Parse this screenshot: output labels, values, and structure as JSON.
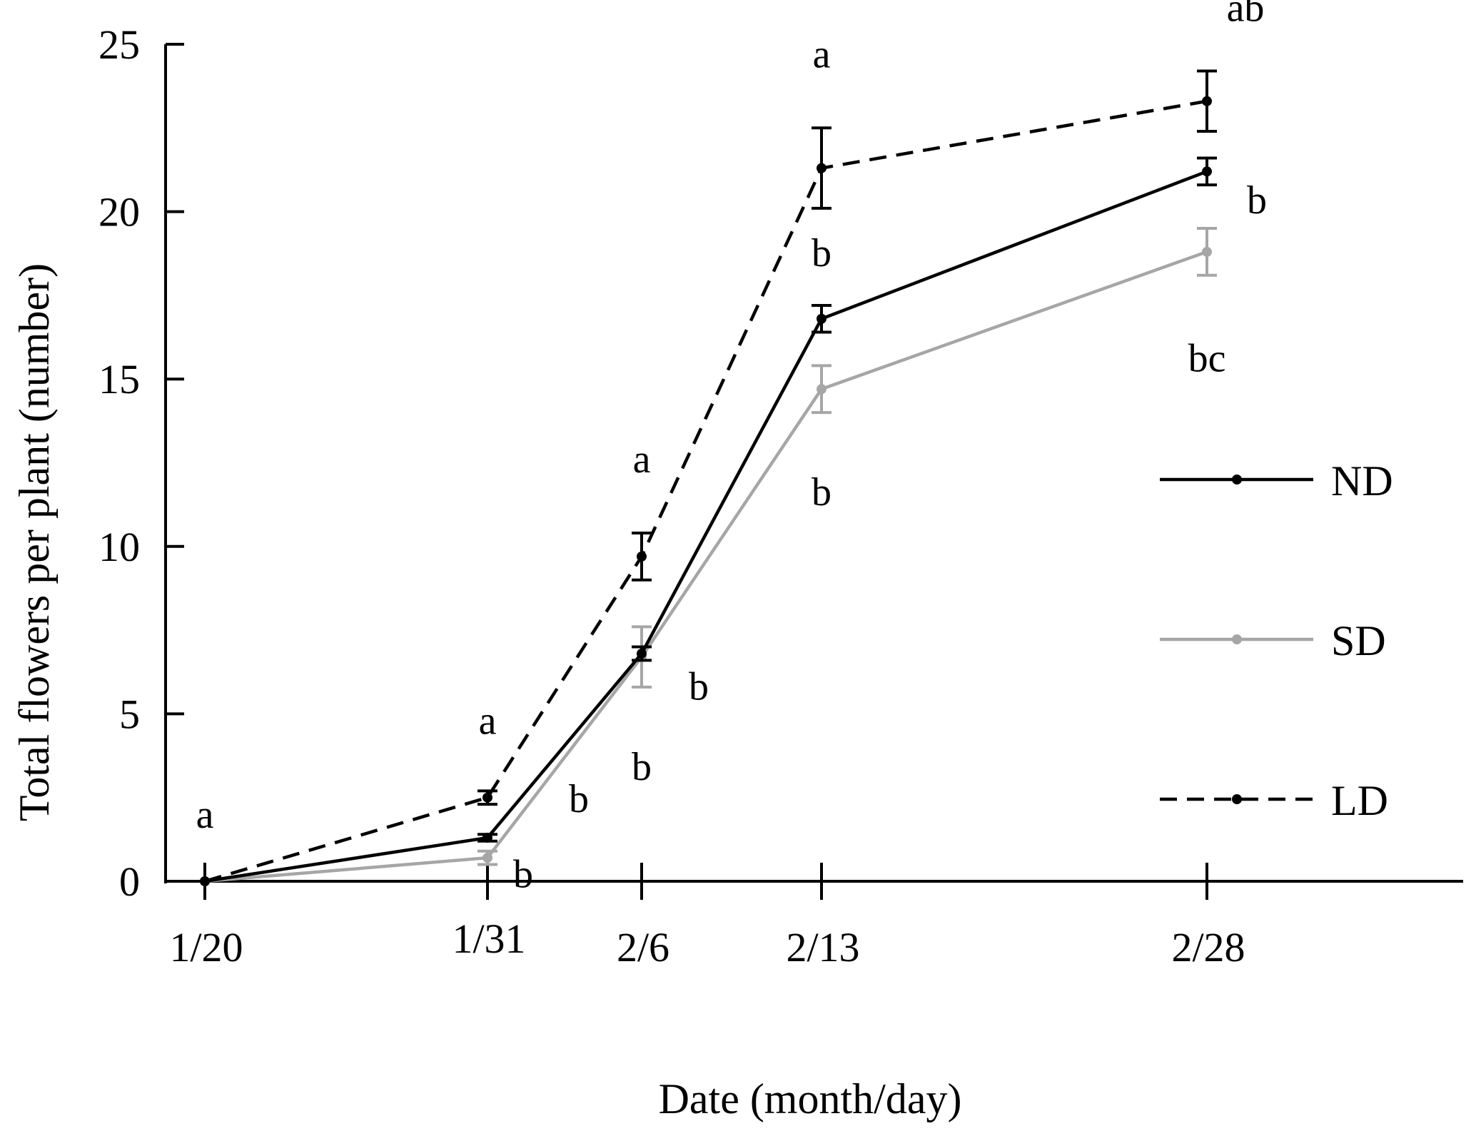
{
  "chart_data": {
    "type": "line",
    "title": "",
    "xlabel": "Date (month/day)",
    "ylabel": "Total flowers per plant (number)",
    "x": [
      "1/20",
      "1/31",
      "2/6",
      "2/13",
      "2/28"
    ],
    "x_days": [
      0,
      11,
      17,
      24,
      39
    ],
    "ylim": [
      0,
      25
    ],
    "yticks": [
      0,
      5,
      10,
      15,
      20,
      25
    ],
    "grid": false,
    "legend_position": "right",
    "series": [
      {
        "name": "ND",
        "color": "#000000",
        "dash": "solid",
        "values": [
          0,
          1.3,
          6.8,
          16.8,
          21.2
        ],
        "errors": [
          0,
          0.1,
          0.2,
          0.4,
          0.4
        ],
        "letters": [
          "a",
          "b",
          "b",
          "b",
          "b"
        ]
      },
      {
        "name": "SD",
        "color": "#a6a6a6",
        "dash": "solid",
        "values": [
          0,
          0.7,
          6.7,
          14.7,
          18.8
        ],
        "errors": [
          0,
          0.2,
          0.9,
          0.7,
          0.7
        ],
        "letters": [
          "a",
          "b",
          "b",
          "b",
          "bc"
        ]
      },
      {
        "name": "LD",
        "color": "#000000",
        "dash": "dashed",
        "values": [
          0,
          2.5,
          9.7,
          21.3,
          23.3
        ],
        "errors": [
          0,
          0.2,
          0.7,
          1.2,
          0.9
        ],
        "letters": [
          "a",
          "a",
          "a",
          "a",
          "ab"
        ]
      }
    ]
  }
}
